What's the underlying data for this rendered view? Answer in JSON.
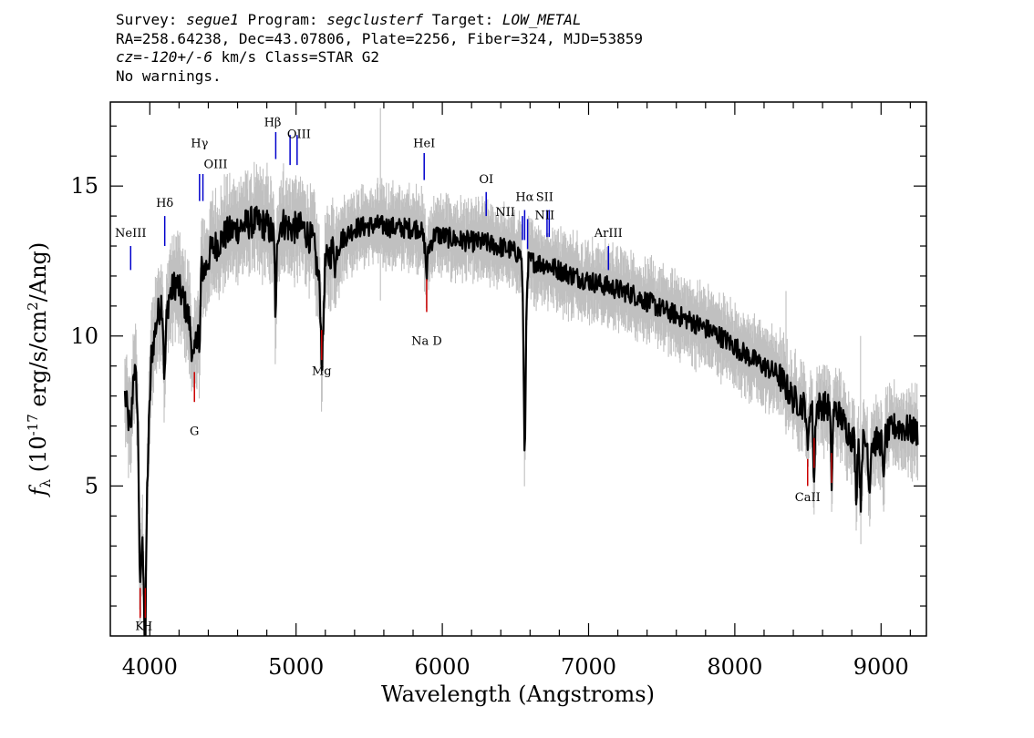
{
  "header": {
    "survey_label": "Survey: ",
    "survey": "segue1",
    "program_label": " Program: ",
    "program": "segclusterf",
    "target_label": " Target: ",
    "target": "LOW_METAL",
    "line2": "RA=258.64238, Dec=43.07806, Plate=2256, Fiber=324, MJD=53859",
    "cz_label": "cz=",
    "cz_value": "-120+/-6",
    "cz_unit": " km/s Class=STAR G2",
    "warnings": "No warnings."
  },
  "chart_data": {
    "type": "line",
    "xlabel": "Wavelength (Angstroms)",
    "ylabel_prefix": "f",
    "ylabel_sub": "λ",
    "ylabel_open": " (10",
    "ylabel_exp": "-17",
    "ylabel_unit": " erg/s/cm",
    "ylabel_exp2": "2",
    "ylabel_close": "/Ang)",
    "xlim": [
      3730,
      9310
    ],
    "ylim": [
      0,
      17.8
    ],
    "xticks": [
      4000,
      5000,
      6000,
      7000,
      8000,
      9000
    ],
    "yticks": [
      5,
      10,
      15
    ],
    "colors": {
      "spectrum": "#000000",
      "error_band": "#c0c0c0",
      "emission": "#0000cc",
      "absorption": "#cc0000"
    },
    "flux_anchors": [
      [
        3830,
        8.0
      ],
      [
        3870,
        6.7
      ],
      [
        3890,
        9.0
      ],
      [
        3910,
        8.3
      ],
      [
        3932,
        4.5
      ],
      [
        3950,
        3.0
      ],
      [
        3968,
        2.5
      ],
      [
        3985,
        5.5
      ],
      [
        4010,
        9.3
      ],
      [
        4050,
        10.6
      ],
      [
        4080,
        11.2
      ],
      [
        4101,
        10.0
      ],
      [
        4130,
        11.3
      ],
      [
        4180,
        11.8
      ],
      [
        4230,
        11.2
      ],
      [
        4270,
        10.5
      ],
      [
        4300,
        9.0
      ],
      [
        4325,
        10.3
      ],
      [
        4345,
        12.3
      ],
      [
        4380,
        12.2
      ],
      [
        4420,
        12.9
      ],
      [
        4470,
        13.1
      ],
      [
        4520,
        13.4
      ],
      [
        4600,
        13.6
      ],
      [
        4700,
        13.8
      ],
      [
        4800,
        13.7
      ],
      [
        4850,
        13.3
      ],
      [
        4900,
        13.8
      ],
      [
        4960,
        13.6
      ],
      [
        5050,
        13.6
      ],
      [
        5120,
        13.1
      ],
      [
        5170,
        11.3
      ],
      [
        5200,
        12.4
      ],
      [
        5260,
        13.0
      ],
      [
        5400,
        13.6
      ],
      [
        5550,
        13.7
      ],
      [
        5700,
        13.6
      ],
      [
        5850,
        13.6
      ],
      [
        5893,
        12.8
      ],
      [
        5950,
        13.4
      ],
      [
        6100,
        13.2
      ],
      [
        6300,
        13.1
      ],
      [
        6450,
        12.9
      ],
      [
        6540,
        12.7
      ],
      [
        6563,
        9.5
      ],
      [
        6590,
        12.5
      ],
      [
        6700,
        12.4
      ],
      [
        6900,
        12.0
      ],
      [
        7100,
        11.7
      ],
      [
        7300,
        11.4
      ],
      [
        7500,
        10.9
      ],
      [
        7700,
        10.5
      ],
      [
        7900,
        10.0
      ],
      [
        8100,
        9.3
      ],
      [
        8300,
        8.7
      ],
      [
        8400,
        7.9
      ],
      [
        8500,
        7.6
      ],
      [
        8600,
        7.7
      ],
      [
        8700,
        7.5
      ],
      [
        8800,
        6.6
      ],
      [
        8900,
        6.4
      ],
      [
        9000,
        6.5
      ],
      [
        9100,
        7.0
      ],
      [
        9250,
        6.8
      ]
    ],
    "absorption_dips": [
      [
        3934,
        3.0
      ],
      [
        3968,
        3.5
      ],
      [
        4101,
        1.5
      ],
      [
        4340,
        2.5
      ],
      [
        4861,
        2.8
      ],
      [
        5175,
        1.7
      ],
      [
        5184,
        1.6
      ],
      [
        5270,
        0.8
      ],
      [
        5893,
        0.8
      ],
      [
        6563,
        3.5
      ],
      [
        8498,
        1.6
      ],
      [
        8542,
        2.5
      ],
      [
        8662,
        2.4
      ],
      [
        8830,
        1.8
      ],
      [
        8860,
        2.0
      ],
      [
        8920,
        1.6
      ],
      [
        9015,
        1.4
      ]
    ],
    "spikes": [
      [
        5577,
        2.5,
        17.6
      ],
      [
        6300,
        0.8,
        14.2
      ],
      [
        8350,
        1.5,
        11.5
      ],
      [
        8860,
        1.5,
        10.0
      ]
    ],
    "emission_lines": [
      {
        "label": "NeIII",
        "x": 3869,
        "y0": 12.2,
        "y1": 13.0,
        "tx": 3869,
        "ty": 13.3
      },
      {
        "label": "Hδ",
        "x": 4102,
        "y0": 13.0,
        "y1": 14.0,
        "tx": 4102,
        "ty": 14.3
      },
      {
        "label": "Hγ",
        "x": 4340,
        "y0": 14.5,
        "y1": 15.4,
        "tx": 4340,
        "ty": 16.3
      },
      {
        "label": "OIII",
        "x": 4363,
        "y0": 14.5,
        "y1": 15.4,
        "tx": 4450,
        "ty": 15.6
      },
      {
        "label": "Hβ",
        "x": 4861,
        "y0": 15.9,
        "y1": 16.8,
        "tx": 4840,
        "ty": 17.0
      },
      {
        "label": "OIII",
        "x": 4959,
        "y0": 15.7,
        "y1": 16.7,
        "tx": 5020,
        "ty": 16.6
      },
      {
        "label": "OIII",
        "x": 5007,
        "y0": 15.7,
        "y1": 16.7,
        "tx": null,
        "ty": null
      },
      {
        "label": "HeI",
        "x": 5876,
        "y0": 15.2,
        "y1": 16.1,
        "tx": 5876,
        "ty": 16.3
      },
      {
        "label": "OI",
        "x": 6300,
        "y0": 14.0,
        "y1": 14.8,
        "tx": 6300,
        "ty": 15.1
      },
      {
        "label": "NII",
        "x": 6548,
        "y0": 13.2,
        "y1": 14.0,
        "tx": 6430,
        "ty": 14.0
      },
      {
        "label": "Hα",
        "x": 6563,
        "y0": 13.2,
        "y1": 14.2,
        "tx": 6563,
        "ty": 14.5
      },
      {
        "label": "NII",
        "x": 6583,
        "y0": 12.9,
        "y1": 13.9,
        "tx": null,
        "ty": null
      },
      {
        "label": "SII",
        "x": 6716,
        "y0": 13.3,
        "y1": 14.2,
        "tx": 6700,
        "ty": 14.5
      },
      {
        "label": "NII",
        "x": 6731,
        "y0": 13.3,
        "y1": 14.2,
        "tx": 6700,
        "ty": 13.9
      },
      {
        "label": "ArIII",
        "x": 7136,
        "y0": 12.2,
        "y1": 13.0,
        "tx": 7136,
        "ty": 13.3
      }
    ],
    "absorption_lines": [
      {
        "label": "K",
        "x": 3934,
        "y0": 0.6,
        "y1": 1.6,
        "tx": 3930,
        "ty": 0.2
      },
      {
        "label": "H",
        "x": 3969,
        "y0": 0.6,
        "y1": 1.6,
        "tx": 3983,
        "ty": 0.2
      },
      {
        "label": "G",
        "x": 4305,
        "y0": 7.8,
        "y1": 8.8,
        "tx": 4305,
        "ty": 6.7
      },
      {
        "label": "Mg",
        "x": 5175,
        "y0": 9.2,
        "y1": 10.2,
        "tx": 5175,
        "ty": 8.7
      },
      {
        "label": "Na D",
        "x": 5893,
        "y0": 10.8,
        "y1": 11.9,
        "tx": 5893,
        "ty": 9.7
      },
      {
        "label": "CaII",
        "x": 8498,
        "y0": 5.0,
        "y1": 5.9,
        "tx": 8498,
        "ty": 4.5
      },
      {
        "label": "",
        "x": 8542,
        "y0": 5.6,
        "y1": 6.6,
        "tx": null,
        "ty": null
      },
      {
        "label": "",
        "x": 8662,
        "y0": 5.1,
        "y1": 6.1,
        "tx": null,
        "ty": null
      }
    ]
  }
}
